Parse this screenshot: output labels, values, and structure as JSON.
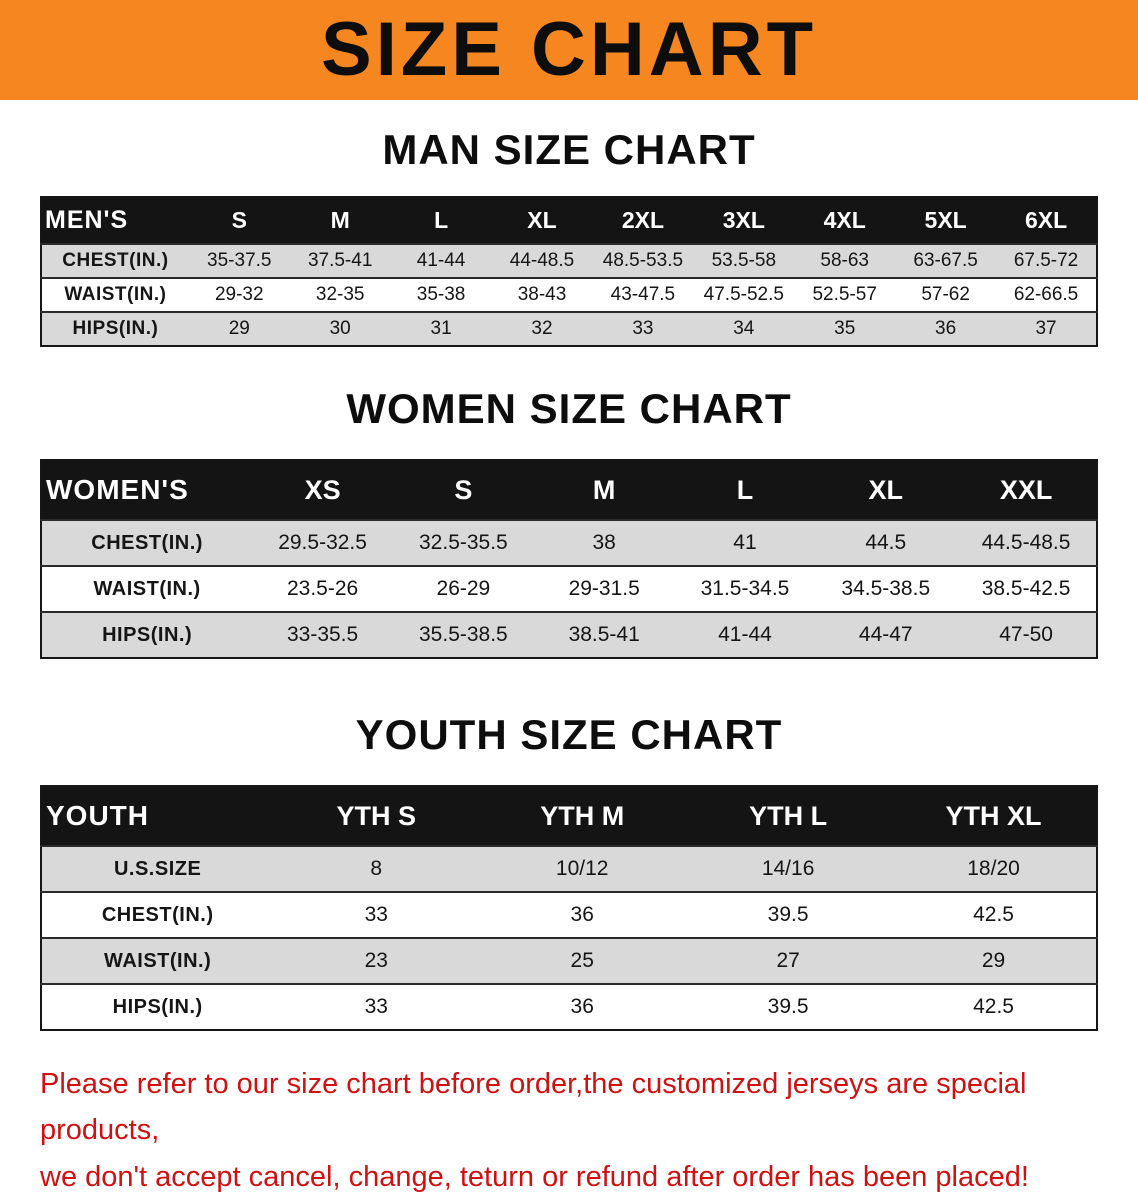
{
  "banner": {
    "title": "SIZE CHART"
  },
  "colors": {
    "banner_bg": "#f6861f",
    "header_bg": "#141414",
    "shaded_row": "#d9d9d9",
    "note_color": "#ce1212"
  },
  "chart_data": [
    {
      "type": "table",
      "title": "MAN SIZE CHART",
      "header_label": "MEN'S",
      "columns": [
        "S",
        "M",
        "L",
        "XL",
        "2XL",
        "3XL",
        "4XL",
        "5XL",
        "6XL"
      ],
      "rows": [
        {
          "label": "CHEST(IN.)",
          "values": [
            "35-37.5",
            "37.5-41",
            "41-44",
            "44-48.5",
            "48.5-53.5",
            "53.5-58",
            "58-63",
            "63-67.5",
            "67.5-72"
          ]
        },
        {
          "label": "WAIST(IN.)",
          "values": [
            "29-32",
            "32-35",
            "35-38",
            "38-43",
            "43-47.5",
            "47.5-52.5",
            "52.5-57",
            "57-62",
            "62-66.5"
          ]
        },
        {
          "label": "HIPS(IN.)",
          "values": [
            "29",
            "30",
            "31",
            "32",
            "33",
            "34",
            "35",
            "36",
            "37"
          ]
        }
      ]
    },
    {
      "type": "table",
      "title": "WOMEN SIZE CHART",
      "header_label": "WOMEN'S",
      "columns": [
        "XS",
        "S",
        "M",
        "L",
        "XL",
        "XXL"
      ],
      "rows": [
        {
          "label": "CHEST(IN.)",
          "values": [
            "29.5-32.5",
            "32.5-35.5",
            "38",
            "41",
            "44.5",
            "44.5-48.5"
          ]
        },
        {
          "label": "WAIST(IN.)",
          "values": [
            "23.5-26",
            "26-29",
            "29-31.5",
            "31.5-34.5",
            "34.5-38.5",
            "38.5-42.5"
          ]
        },
        {
          "label": "HIPS(IN.)",
          "values": [
            "33-35.5",
            "35.5-38.5",
            "38.5-41",
            "41-44",
            "44-47",
            "47-50"
          ]
        }
      ]
    },
    {
      "type": "table",
      "title": "YOUTH SIZE CHART",
      "header_label": "YOUTH",
      "columns": [
        "YTH S",
        "YTH M",
        "YTH L",
        "YTH XL"
      ],
      "rows": [
        {
          "label": "U.S.SIZE",
          "values": [
            "8",
            "10/12",
            "14/16",
            "18/20"
          ]
        },
        {
          "label": "CHEST(IN.)",
          "values": [
            "33",
            "36",
            "39.5",
            "42.5"
          ]
        },
        {
          "label": "WAIST(IN.)",
          "values": [
            "23",
            "25",
            "27",
            "29"
          ]
        },
        {
          "label": "HIPS(IN.)",
          "values": [
            "33",
            "36",
            "39.5",
            "42.5"
          ]
        }
      ]
    }
  ],
  "note": {
    "line1": "Please refer to our size chart before order,the customized jerseys are special products,",
    "line2": "we don't accept cancel, change, teturn or refund after order has been placed!"
  }
}
